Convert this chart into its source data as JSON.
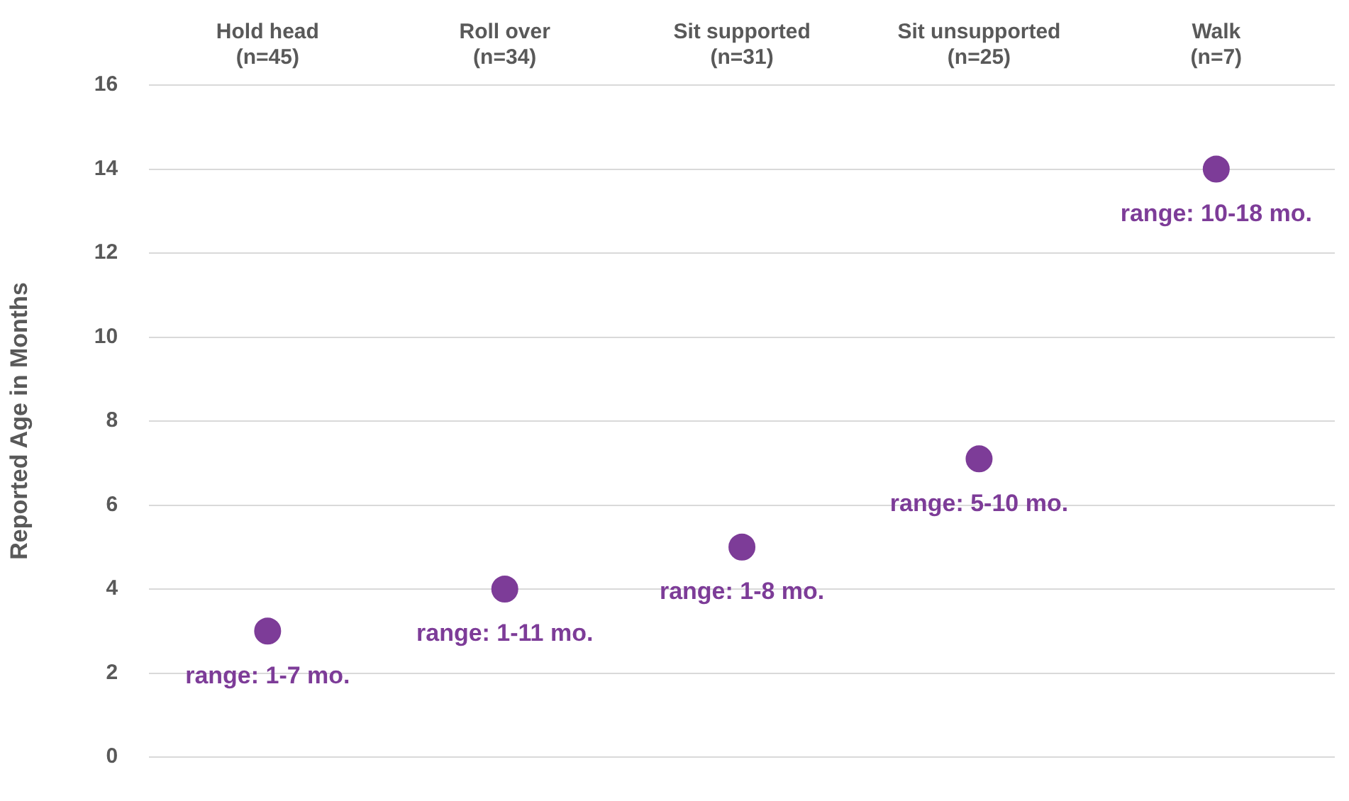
{
  "chart_data": {
    "type": "scatter",
    "ylabel": "Reported Age in Months",
    "categories": [
      "Hold head\n(n=45)",
      "Roll over\n(n=34)",
      "Sit supported\n(n=31)",
      "Sit unsupported\n(n=25)",
      "Walk\n(n=7)"
    ],
    "values": [
      3,
      4,
      5,
      7.1,
      14
    ],
    "color": "#7d3c98",
    "marker": "circle",
    "ylim": [
      0,
      16
    ],
    "yticks": [
      0,
      2,
      4,
      6,
      8,
      10,
      12,
      14,
      16
    ],
    "grid": "y",
    "legend": false,
    "annotations": [
      {
        "text": "range: 1-7 mo.",
        "x": "Hold head\n(n=45)",
        "y": 3
      },
      {
        "text": "range: 1-11 mo.",
        "x": "Roll over\n(n=34)",
        "y": 4
      },
      {
        "text": "range: 1-8 mo.",
        "x": "Sit supported\n(n=31)",
        "y": 5
      },
      {
        "text": "range: 5-10 mo.",
        "x": "Sit unsupported\n(n=25)",
        "y": 7.1
      },
      {
        "text": "range: 10-18 mo.",
        "x": "Walk\n(n=7)",
        "y": 14
      }
    ]
  }
}
